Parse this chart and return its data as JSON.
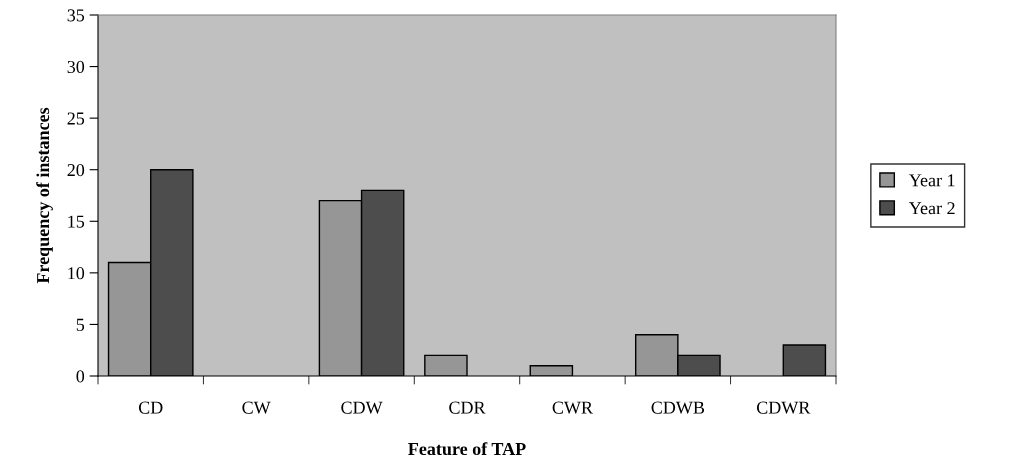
{
  "chart_data": {
    "type": "bar",
    "xlabel": "Feature of TAP",
    "ylabel": "Frequency of instances",
    "categories": [
      "CD",
      "CW",
      "CDW",
      "CDR",
      "CWR",
      "CDWB",
      "CDWR"
    ],
    "series": [
      {
        "name": "Year 1",
        "color": "#969696",
        "values": [
          11,
          0,
          17,
          2,
          1,
          4,
          0
        ]
      },
      {
        "name": "Year 2",
        "color": "#4d4d4d",
        "values": [
          20,
          0,
          18,
          0,
          0,
          2,
          3
        ]
      }
    ],
    "ylim": [
      0,
      35
    ],
    "yticks": [
      0,
      5,
      10,
      15,
      20,
      25,
      30,
      35
    ],
    "grid": false,
    "legend": "right"
  }
}
